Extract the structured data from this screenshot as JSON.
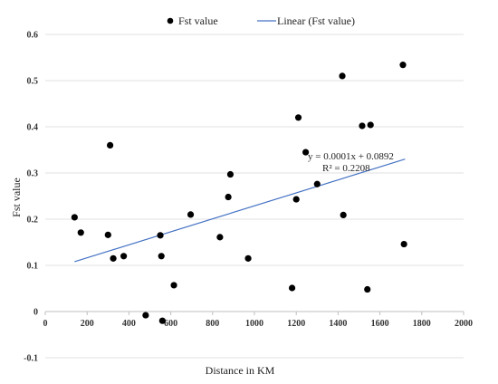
{
  "chart_data": {
    "type": "scatter",
    "xlabel": "Distance in KM",
    "ylabel": "Fst value",
    "xlim": [
      0,
      2000
    ],
    "ylim": [
      -0.1,
      0.6
    ],
    "x_ticks": [
      0,
      200,
      400,
      600,
      800,
      1000,
      1200,
      1400,
      1600,
      1800,
      2000
    ],
    "y_ticks": [
      -0.1,
      0,
      0.1,
      0.2,
      0.3,
      0.4,
      0.5,
      0.6
    ],
    "x_tick_labels": [
      "0",
      "200",
      "400",
      "600",
      "800",
      "1000",
      "1200",
      "1400",
      "1600",
      "1800",
      "2000"
    ],
    "y_tick_labels": [
      "-0.1",
      "0",
      "0.1",
      "0.2",
      "0.3",
      "0.4",
      "0.5",
      "0.6"
    ],
    "grid": "horizontal",
    "legend_position": "top",
    "series": [
      {
        "name": "Fst value",
        "color": "#000000",
        "x": [
          140,
          170,
          300,
          310,
          325,
          375,
          480,
          550,
          555,
          560,
          615,
          695,
          835,
          875,
          885,
          970,
          1180,
          1200,
          1210,
          1245,
          1300,
          1420,
          1425,
          1515,
          1540,
          1555,
          1710,
          1715
        ],
        "y": [
          0.204,
          0.171,
          0.166,
          0.36,
          0.115,
          0.12,
          -0.008,
          0.165,
          0.12,
          -0.02,
          0.057,
          0.21,
          0.161,
          0.248,
          0.297,
          0.115,
          0.051,
          0.243,
          0.42,
          0.345,
          0.276,
          0.51,
          0.209,
          0.402,
          0.048,
          0.404,
          0.534,
          0.146
        ]
      }
    ],
    "trendline": {
      "name": "Linear (Fst value)",
      "color": "#4472c4",
      "x_range": [
        140,
        1720
      ],
      "y_range": [
        0.108,
        0.33
      ],
      "equation": "y = 0.0001x + 0.0892",
      "r_squared": "R² = 0.2208"
    }
  }
}
